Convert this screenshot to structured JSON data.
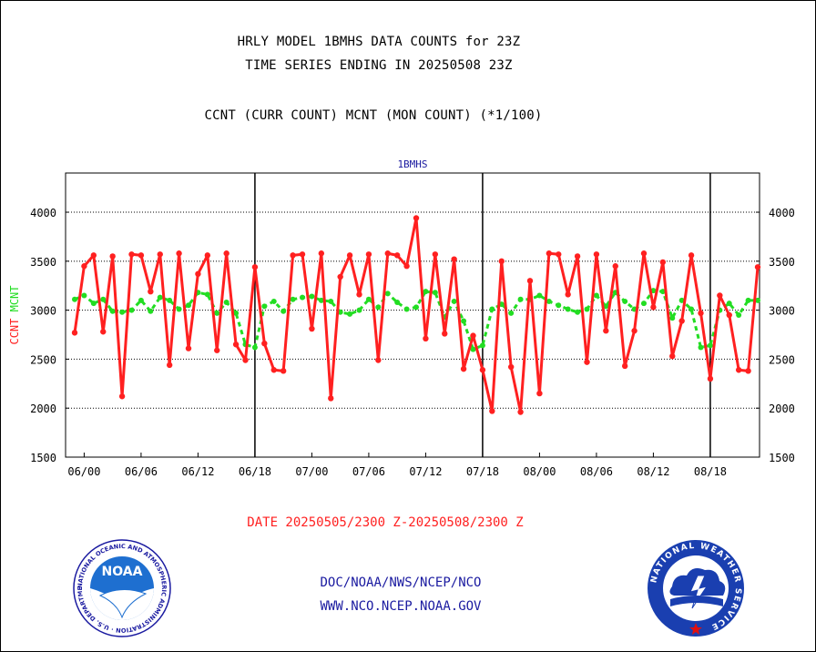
{
  "header": {
    "line1": "HRLY MODEL 1BMHS DATA COUNTS for 23Z",
    "line2": "TIME SERIES ENDING IN 20250508 23Z",
    "line3": "CCNT (CURR COUNT) MCNT (MON COUNT) (*1/100)"
  },
  "footer": {
    "date_range": "DATE 20250505/2300 Z-20250508/2300 Z",
    "org_path": "DOC/NOAA/NWS/NCEP/NCO",
    "website": "WWW.NCO.NCEP.NOAA.GOV"
  },
  "logos": {
    "noaa": {
      "text": "NOAA",
      "ring_text": "NATIONAL OCEANIC AND ATMOSPHERIC ADMINISTRATION · U.S. DEPARTMENT OF COMMERCE"
    },
    "nws": {
      "ring_text": "NATIONAL WEATHER SERVICE"
    }
  },
  "colors": {
    "ccnt": "#ff2020",
    "mcnt": "#22dd22",
    "title": "#1a1aa0",
    "vline": "#000000",
    "grid": "#000000"
  },
  "chart_data": {
    "type": "line",
    "title": "1BMHS",
    "ylabel_series": [
      "CCNT",
      "MCNT"
    ],
    "ylim": [
      1500,
      4400
    ],
    "yticks": [
      1500,
      2000,
      2500,
      3000,
      3500,
      4000
    ],
    "gridlines": [
      2000,
      2500,
      3000,
      3500,
      4000
    ],
    "xticks": [
      "06/00",
      "06/06",
      "06/12",
      "06/18",
      "07/00",
      "07/06",
      "07/12",
      "07/18",
      "08/00",
      "08/06",
      "08/12",
      "08/18"
    ],
    "xtick_index": [
      1,
      7,
      13,
      19,
      25,
      31,
      37,
      43,
      49,
      55,
      61,
      67
    ],
    "day_boundaries": [
      19,
      43,
      67
    ],
    "x_count": 73,
    "series": [
      {
        "name": "CCNT",
        "color": "#ff2020",
        "values": [
          2770,
          3450,
          3560,
          2780,
          3550,
          2120,
          3570,
          3560,
          3190,
          3570,
          2440,
          3580,
          2610,
          3370,
          3560,
          2590,
          3580,
          2650,
          2490,
          3440,
          2660,
          2390,
          2380,
          3560,
          3570,
          2810,
          3580,
          2100,
          3340,
          3560,
          3160,
          3570,
          2490,
          3580,
          3560,
          3450,
          3940,
          2710,
          3570,
          2760,
          3520,
          2400,
          2740,
          2390,
          1970,
          3500,
          2420,
          1960,
          3300,
          2150,
          3580,
          3570,
          3160,
          3550,
          2470,
          3570,
          2790,
          3450,
          2430,
          2790,
          3580,
          3030,
          3490,
          2530,
          2890,
          3560,
          2970,
          2300,
          3150,
          2950,
          2390,
          2380,
          3440
        ]
      },
      {
        "name": "MCNT",
        "color": "#22dd22",
        "values": [
          3110,
          3150,
          3070,
          3110,
          2990,
          2980,
          3000,
          3100,
          2990,
          3130,
          3100,
          3010,
          3050,
          3180,
          3160,
          2970,
          3080,
          2970,
          2650,
          2620,
          3040,
          3090,
          2990,
          3110,
          3130,
          3140,
          3100,
          3090,
          2980,
          2960,
          3000,
          3110,
          3030,
          3170,
          3080,
          3010,
          3030,
          3190,
          3180,
          2930,
          3090,
          2890,
          2600,
          2640,
          3010,
          3060,
          2970,
          3110,
          3110,
          3150,
          3090,
          3050,
          3010,
          2980,
          3010,
          3150,
          3040,
          3180,
          3090,
          3010,
          3070,
          3200,
          3190,
          2920,
          3100,
          3010,
          2620,
          2640,
          3000,
          3070,
          2950,
          3100,
          3100
        ]
      }
    ]
  }
}
